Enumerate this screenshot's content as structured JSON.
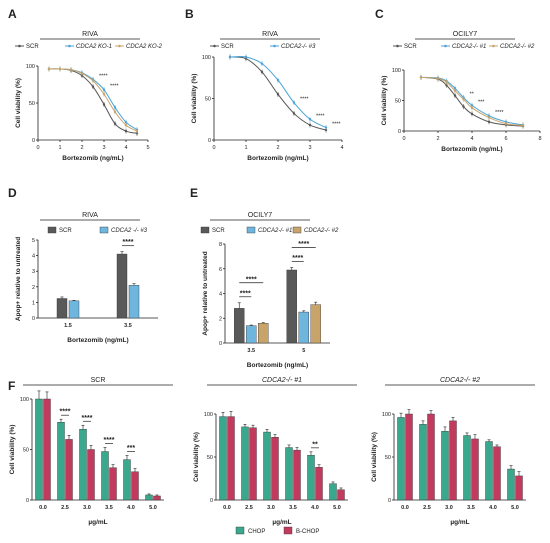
{
  "chart_data": [
    {
      "id": "A",
      "type": "line",
      "panel_label": "A",
      "title": "RIVA",
      "xlabel": "Bortezomib (ng/mL)",
      "ylabel": "Cell viability (%)",
      "xlim": [
        0,
        5
      ],
      "ylim": [
        0,
        100
      ],
      "xticks": [
        "0",
        "1",
        "2",
        "3",
        "4",
        "5"
      ],
      "yticks": [
        "0",
        "50",
        "100"
      ],
      "legend": {
        "position": "top",
        "entries": [
          "SCR",
          "CDCA2 KO-1",
          "CDCA2 KO-2"
        ]
      },
      "series": [
        {
          "name": "SCR",
          "color": "#555555",
          "x": [
            0.5,
            1,
            1.5,
            2,
            2.5,
            3,
            3.5,
            4,
            4.5
          ],
          "y": [
            96,
            96,
            94,
            87,
            72,
            48,
            22,
            12,
            9
          ]
        },
        {
          "name": "CDCA2 KO-1",
          "color": "#4aa3d8",
          "x": [
            0.5,
            1,
            1.5,
            2,
            2.5,
            3,
            3.5,
            4,
            4.5
          ],
          "y": [
            96,
            96,
            95,
            91,
            82,
            68,
            44,
            24,
            14
          ]
        },
        {
          "name": "CDCA2 KO-2",
          "color": "#c9a46a",
          "x": [
            0.5,
            1,
            1.5,
            2,
            2.5,
            3,
            3.5,
            4,
            4.5
          ],
          "y": [
            96,
            96,
            95,
            90,
            80,
            62,
            38,
            20,
            12
          ]
        }
      ],
      "annotations": [
        "****",
        "****"
      ]
    },
    {
      "id": "B",
      "type": "line",
      "panel_label": "B",
      "title": "RIVA",
      "xlabel": "Bortezomib (ng/mL)",
      "ylabel": "Cell viability (%)",
      "xlim": [
        0,
        4
      ],
      "ylim": [
        0,
        100
      ],
      "xticks": [
        "0",
        "1",
        "2",
        "3",
        "4"
      ],
      "yticks": [
        "0",
        "50",
        "100"
      ],
      "legend": {
        "position": "top",
        "entries": [
          "SCR",
          "CDCA2-/- #3"
        ]
      },
      "series": [
        {
          "name": "SCR",
          "color": "#555555",
          "x": [
            0.5,
            1,
            1.5,
            2,
            2.5,
            3,
            3.5
          ],
          "y": [
            100,
            98,
            82,
            55,
            32,
            18,
            12
          ]
        },
        {
          "name": "CDCA2-/- #3",
          "color": "#4aa3d8",
          "x": [
            0.5,
            1,
            1.5,
            2,
            2.5,
            3,
            3.5
          ],
          "y": [
            100,
            100,
            92,
            72,
            45,
            25,
            15
          ]
        }
      ],
      "annotations": [
        "****",
        "****",
        "****"
      ]
    },
    {
      "id": "C",
      "type": "line",
      "panel_label": "C",
      "title": "OCILY7",
      "xlabel": "Bortezomib (ng/mL)",
      "ylabel": "Cell viability (%)",
      "xlim": [
        0,
        8
      ],
      "ylim": [
        0,
        100
      ],
      "xticks": [
        "0",
        "2",
        "4",
        "6",
        "8"
      ],
      "yticks": [
        "0",
        "50",
        "100"
      ],
      "legend": {
        "position": "top",
        "entries": [
          "SCR",
          "CDCA2-/- #1",
          "CDCA2-/- #2"
        ]
      },
      "series": [
        {
          "name": "SCR",
          "color": "#555555",
          "x": [
            1,
            2,
            2.5,
            3,
            3.5,
            4,
            5,
            6,
            7
          ],
          "y": [
            88,
            85,
            75,
            58,
            40,
            28,
            15,
            10,
            8
          ]
        },
        {
          "name": "CDCA2-/- #1",
          "color": "#4aa3d8",
          "x": [
            1,
            2,
            2.5,
            3,
            3.5,
            4,
            5,
            6,
            7
          ],
          "y": [
            88,
            87,
            82,
            70,
            55,
            42,
            25,
            15,
            10
          ]
        },
        {
          "name": "CDCA2-/- #2",
          "color": "#c9a46a",
          "x": [
            1,
            2,
            2.5,
            3,
            3.5,
            4,
            5,
            6,
            7
          ],
          "y": [
            88,
            86,
            80,
            66,
            52,
            38,
            22,
            12,
            9
          ]
        }
      ],
      "annotations": [
        "**",
        "***",
        "****"
      ]
    },
    {
      "id": "D",
      "type": "bar",
      "panel_label": "D",
      "title": "RIVA",
      "xlabel": "Bortezomib (ng/mL)",
      "ylabel": "Apop+ relative to untreated",
      "ylim": [
        0,
        5
      ],
      "yticks": [
        "0",
        "1",
        "2",
        "3",
        "4",
        "5"
      ],
      "legend": {
        "position": "top",
        "entries": [
          "SCR",
          "CDCA2 -/- #3"
        ]
      },
      "categories": [
        "1.5",
        "3.5"
      ],
      "series": [
        {
          "name": "SCR",
          "color": "#595959",
          "values": [
            1.25,
            4.1
          ],
          "errors": [
            0.1,
            0.15
          ]
        },
        {
          "name": "CDCA2 -/- #3",
          "color": "#6fb6de",
          "values": [
            1.1,
            2.1
          ],
          "errors": [
            0.03,
            0.1
          ]
        }
      ],
      "annotations": [
        "****"
      ]
    },
    {
      "id": "E",
      "type": "bar",
      "panel_label": "E",
      "title": "OCILY7",
      "xlabel": "Bortezomib (ng/mL)",
      "ylabel": "Apop+ relative to untreated",
      "ylim": [
        0,
        8
      ],
      "yticks": [
        "0",
        "2",
        "4",
        "6",
        "8"
      ],
      "legend": {
        "position": "top",
        "entries": [
          "SCR",
          "CDCA2-/- #1",
          "CDCA2-/- #2"
        ]
      },
      "categories": [
        "3.5",
        "5"
      ],
      "series": [
        {
          "name": "SCR",
          "color": "#595959",
          "values": [
            2.8,
            5.9
          ],
          "errors": [
            0.45,
            0.2
          ]
        },
        {
          "name": "CDCA2-/- #1",
          "color": "#6fb6de",
          "values": [
            1.4,
            2.5
          ],
          "errors": [
            0.05,
            0.1
          ]
        },
        {
          "name": "CDCA2-/- #2",
          "color": "#c9a46a",
          "values": [
            1.6,
            3.1
          ],
          "errors": [
            0.05,
            0.2
          ]
        }
      ],
      "annotations": [
        "****",
        "****",
        "****",
        "****"
      ]
    },
    {
      "id": "F1",
      "type": "bar",
      "panel_label": "F",
      "title": "SCR",
      "xlabel": "µg/mL",
      "ylabel": "Cell viability (%)",
      "ylim": [
        0,
        100
      ],
      "yticks": [
        "0",
        "50",
        "100"
      ],
      "categories": [
        "0.0",
        "2.5",
        "3.0",
        "3.5",
        "4.0",
        "5.0"
      ],
      "series": [
        {
          "name": "CHOP",
          "color": "#3aa88d",
          "values": [
            100,
            77,
            70,
            48,
            40,
            5
          ],
          "errors": [
            8,
            3,
            4,
            4,
            4,
            1
          ]
        },
        {
          "name": "B-CHOP",
          "color": "#c23b5f",
          "values": [
            100,
            60,
            50,
            32,
            28,
            4
          ],
          "errors": [
            7,
            4,
            4,
            3,
            3,
            1
          ]
        }
      ],
      "annotations": [
        "****",
        "****",
        "****",
        "***"
      ]
    },
    {
      "id": "F2",
      "type": "bar",
      "title": "CDCA2-/- #1",
      "xlabel": "µg/mL",
      "ylabel": "Cell viability (%)",
      "ylim": [
        0,
        100
      ],
      "yticks": [
        "0",
        "50",
        "100"
      ],
      "categories": [
        "0.0",
        "2.5",
        "3.0",
        "3.5",
        "4.0",
        "5.0"
      ],
      "series": [
        {
          "name": "CHOP",
          "color": "#3aa88d",
          "values": [
            97,
            85,
            79,
            61,
            52,
            19
          ],
          "errors": [
            5,
            3,
            3,
            3,
            4,
            2
          ]
        },
        {
          "name": "B-CHOP",
          "color": "#c23b5f",
          "values": [
            97,
            84,
            73,
            58,
            38,
            12
          ],
          "errors": [
            6,
            3,
            3,
            3,
            3,
            2
          ]
        }
      ],
      "annotations": [
        "**"
      ]
    },
    {
      "id": "F3",
      "type": "bar",
      "title": "CDCA2-/- #2",
      "xlabel": "µg/mL",
      "ylabel": "Cell viability (%)",
      "ylim": [
        0,
        100
      ],
      "yticks": [
        "0",
        "50",
        "100"
      ],
      "categories": [
        "0.0",
        "2.5",
        "3.0",
        "3.5",
        "4.0",
        "5.0"
      ],
      "series": [
        {
          "name": "CHOP",
          "color": "#3aa88d",
          "values": [
            96,
            88,
            80,
            75,
            68,
            36
          ],
          "errors": [
            5,
            4,
            5,
            3,
            2,
            4
          ]
        },
        {
          "name": "B-CHOP",
          "color": "#c23b5f",
          "values": [
            100,
            100,
            92,
            71,
            62,
            28
          ],
          "errors": [
            5,
            4,
            4,
            5,
            2,
            5
          ]
        }
      ]
    }
  ],
  "shared_legend": {
    "entries": [
      "CHOP",
      "B-CHOP"
    ],
    "colors": [
      "#3aa88d",
      "#c23b5f"
    ]
  }
}
